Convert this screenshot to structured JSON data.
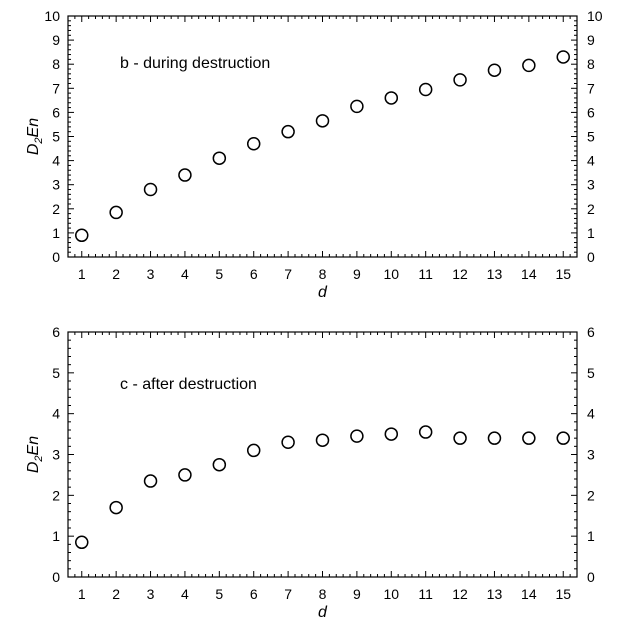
{
  "chart_data": [
    {
      "type": "scatter",
      "annotation": "b - during destruction",
      "xlabel": "d",
      "ylabel": {
        "base": "D",
        "sub": "2",
        "rest": "En"
      },
      "xlim": [
        1,
        15
      ],
      "ylim": [
        0,
        10
      ],
      "xticks": [
        1,
        2,
        3,
        4,
        5,
        6,
        7,
        8,
        9,
        10,
        11,
        12,
        13,
        14,
        15
      ],
      "yticks": [
        0,
        1,
        2,
        3,
        4,
        5,
        6,
        7,
        8,
        9,
        10
      ],
      "grid": false,
      "marker": "open-circle",
      "x": [
        1,
        2,
        3,
        4,
        5,
        6,
        7,
        8,
        9,
        10,
        11,
        12,
        13,
        14,
        15
      ],
      "y": [
        0.9,
        1.85,
        2.8,
        3.4,
        4.1,
        4.7,
        5.2,
        5.65,
        6.25,
        6.6,
        6.95,
        7.35,
        7.75,
        7.95,
        8.3
      ]
    },
    {
      "type": "scatter",
      "annotation": "c - after destruction",
      "xlabel": "d",
      "ylabel": {
        "base": "D",
        "sub": "2",
        "rest": "En"
      },
      "xlim": [
        1,
        15
      ],
      "ylim": [
        0,
        6
      ],
      "xticks": [
        1,
        2,
        3,
        4,
        5,
        6,
        7,
        8,
        9,
        10,
        11,
        12,
        13,
        14,
        15
      ],
      "yticks": [
        0,
        1,
        2,
        3,
        4,
        5,
        6
      ],
      "grid": false,
      "marker": "open-circle",
      "x": [
        1,
        2,
        3,
        4,
        5,
        6,
        7,
        8,
        9,
        10,
        11,
        12,
        13,
        14,
        15
      ],
      "y": [
        0.85,
        1.7,
        2.35,
        2.5,
        2.75,
        3.1,
        3.3,
        3.35,
        3.45,
        3.5,
        3.55,
        3.4,
        3.4,
        3.4,
        3.4
      ]
    }
  ]
}
